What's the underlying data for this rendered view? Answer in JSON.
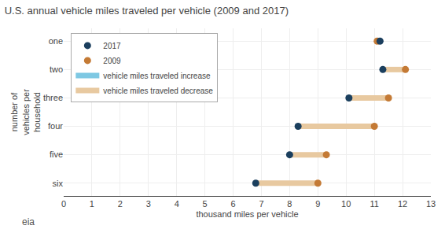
{
  "chart_data": {
    "type": "dumbbell",
    "title": "U.S. annual vehicle miles traveled per vehicle (2009 and 2017)",
    "xlabel": "thousand miles per vehicle",
    "ylabel": "number of\nvehicles per\nhousehold",
    "categories": [
      "one",
      "two",
      "three",
      "four",
      "five",
      "six"
    ],
    "series": [
      {
        "name": "2017",
        "color": "#1b3f5e",
        "values": [
          11.2,
          11.3,
          10.1,
          8.3,
          8.0,
          6.8
        ]
      },
      {
        "name": "2009",
        "color": "#c47a35",
        "values": [
          11.1,
          12.1,
          11.5,
          11.0,
          9.3,
          9.0
        ]
      }
    ],
    "connectors": [
      {
        "name": "vehicle miles traveled increase",
        "color": "#7ec8e3"
      },
      {
        "name": "vehicle miles traveled decrease",
        "color": "#e8c9a0"
      }
    ],
    "increase_flags": [
      true,
      false,
      false,
      false,
      false,
      false
    ],
    "xlim": [
      0,
      13
    ],
    "xticks": [
      0,
      1,
      2,
      3,
      4,
      5,
      6,
      7,
      8,
      9,
      10,
      11,
      12,
      13
    ],
    "grid": true,
    "legend": "upper left",
    "annotations": [
      {
        "text": "eia"
      }
    ]
  }
}
